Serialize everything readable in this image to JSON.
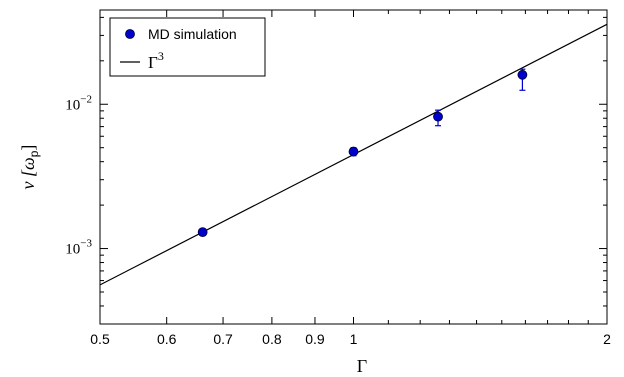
{
  "chart_data": {
    "type": "scatter",
    "xscale": "log",
    "yscale": "log",
    "xlim": [
      0.5,
      2.0
    ],
    "ylim": [
      0.0003,
      0.045
    ],
    "xlabel": "Γ",
    "ylabel": "ν [ωp]",
    "xticks": [
      0.5,
      0.6,
      0.7,
      0.8,
      0.9,
      1,
      2
    ],
    "xtick_labels": [
      "0.5",
      "0.6",
      "0.7",
      "0.8",
      "0.9",
      "1",
      "2"
    ],
    "ytick_labels": [
      {
        "value": 0.001,
        "base": "10",
        "exp": "−3"
      },
      {
        "value": 0.01,
        "base": "10",
        "exp": "−2"
      }
    ],
    "legend_position": "top-left",
    "grid": false,
    "series": [
      {
        "name": "MD simulation",
        "kind": "points-with-errorbars",
        "color": "#0000cc",
        "x": [
          0.662,
          1.0,
          1.26,
          1.587
        ],
        "y": [
          0.0013,
          0.0047,
          0.0082,
          0.016
        ],
        "y_low": [
          0.00125,
          0.0044,
          0.0071,
          0.0125
        ],
        "y_high": [
          0.00135,
          0.005,
          0.0091,
          0.0175
        ]
      },
      {
        "name": "Γ³",
        "name_base": "Γ",
        "name_exp": "3",
        "kind": "line",
        "color": "#000000",
        "x": [
          0.5,
          2.0
        ],
        "y": [
          0.00056,
          0.0358
        ]
      }
    ]
  }
}
